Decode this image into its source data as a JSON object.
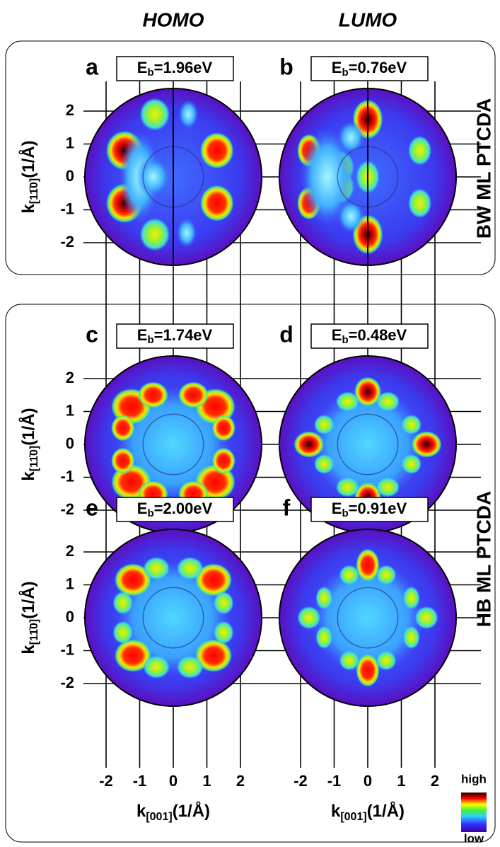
{
  "columns": [
    "HOMO",
    "LUMO"
  ],
  "groups": [
    {
      "label": "BW ML PTCDA"
    },
    {
      "label": "HB ML PTCDA"
    }
  ],
  "energy_symbol": "E",
  "energy_subscript": "b",
  "panels": [
    {
      "letter": "a",
      "energy": "=1.96eV"
    },
    {
      "letter": "b",
      "energy": "=0.76eV"
    },
    {
      "letter": "c",
      "energy": "=1.74eV"
    },
    {
      "letter": "d",
      "energy": "=0.48eV"
    },
    {
      "letter": "e",
      "energy": "=2.00eV"
    },
    {
      "letter": "f",
      "energy": "=0.91eV"
    }
  ],
  "y_axis": {
    "symbol": "k",
    "subscript": "[11̄0]",
    "unit": "(1/Å)"
  },
  "x_axis": {
    "symbol": "k",
    "subscript": "[001]",
    "unit": "(1/Å)"
  },
  "xticks": [
    -2,
    -1,
    0,
    1,
    2
  ],
  "yticks": [
    2,
    1,
    0,
    -1,
    -2
  ],
  "colorbar": {
    "high": "high",
    "low": "low"
  }
}
